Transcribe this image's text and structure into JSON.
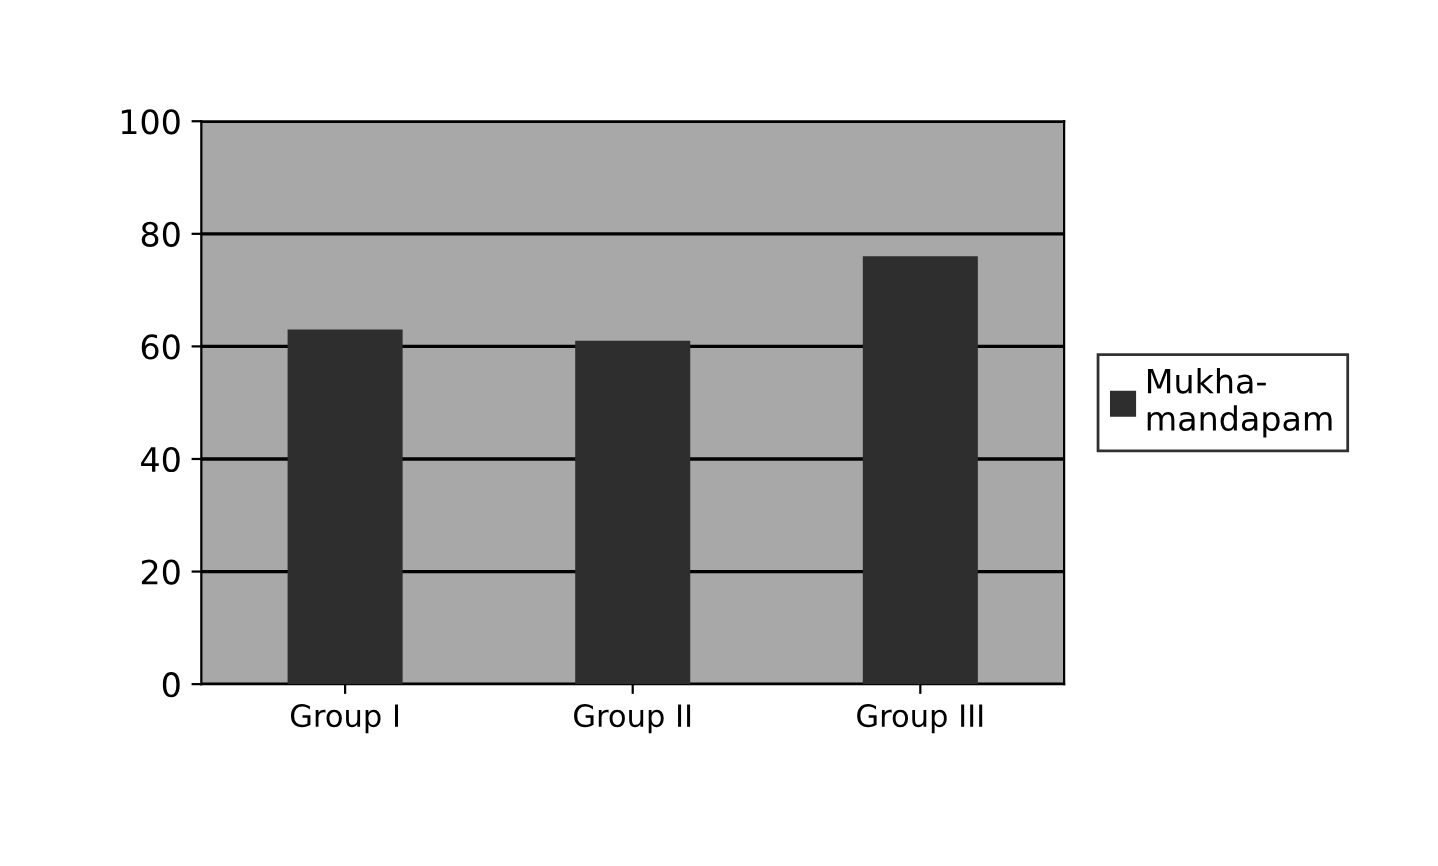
{
  "chart_data": {
    "type": "bar",
    "categories": [
      "Group I",
      "Group II",
      "Group III"
    ],
    "series": [
      {
        "name": "Mukha-\nmandapam",
        "color": "#2e2e2e",
        "values": [
          63,
          61,
          76
        ]
      }
    ],
    "ylim": [
      0,
      100
    ],
    "yticks": [
      0,
      20,
      40,
      60,
      80,
      100
    ],
    "grid": "y",
    "legend": "right"
  }
}
